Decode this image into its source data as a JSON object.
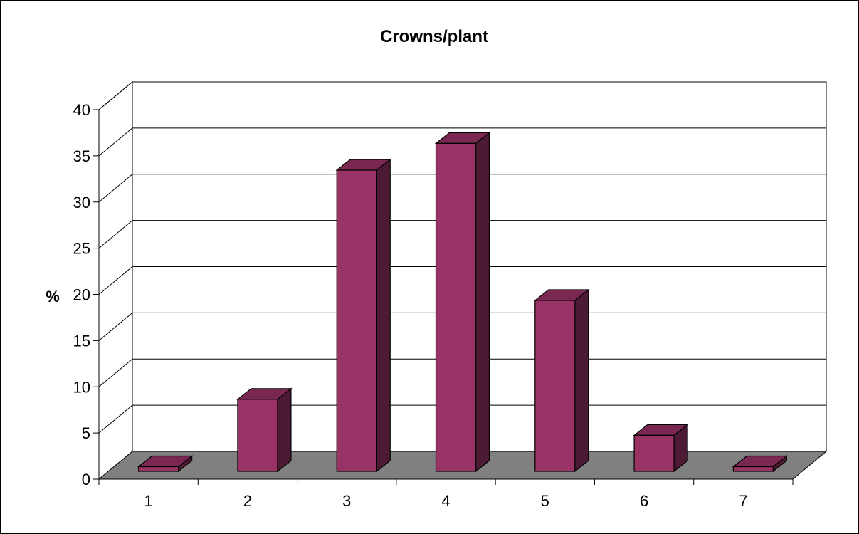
{
  "chart_data": {
    "type": "bar",
    "title": "Crowns/plant",
    "xlabel": "",
    "ylabel": "%",
    "categories": [
      "1",
      "2",
      "3",
      "4",
      "5",
      "6",
      "7"
    ],
    "values": [
      0.5,
      7.8,
      32.6,
      35.5,
      18.5,
      3.9,
      0.5
    ],
    "ylim": [
      0,
      40
    ],
    "yticks": [
      0,
      5,
      10,
      15,
      20,
      25,
      30,
      35,
      40
    ],
    "grid": true,
    "legend": "none",
    "style": "3d-column",
    "colors": {
      "bar_front": "#993366",
      "bar_top": "#7a2852",
      "bar_side": "#4d1a33",
      "floor": "#808080",
      "grid": "#000000"
    }
  }
}
